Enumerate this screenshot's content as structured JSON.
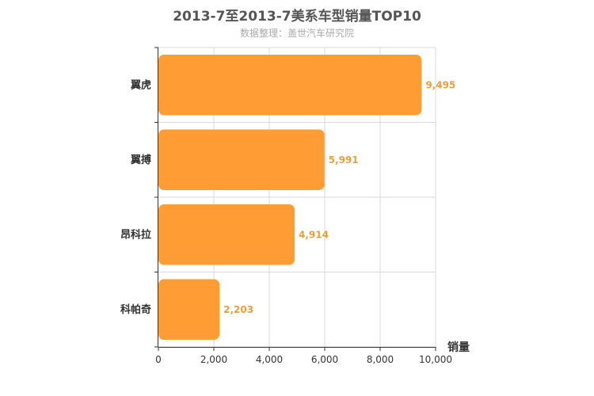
{
  "title": "2013-7至2013-7美系车型销量TOP10",
  "subtitle": "数据整理：盖世汽车研究院",
  "chart_data": {
    "type": "bar",
    "orientation": "horizontal",
    "categories": [
      "翼虎",
      "翼搏",
      "昂科拉",
      "科帕奇"
    ],
    "values": [
      9495,
      5991,
      4914,
      2203
    ],
    "value_labels": [
      "9,495",
      "5,991",
      "4,914",
      "2,203"
    ],
    "xlabel": "销量",
    "xlim": [
      0,
      10000
    ],
    "x_ticks": [
      0,
      2000,
      4000,
      6000,
      8000,
      10000
    ],
    "x_tick_labels": [
      "0",
      "2,000",
      "4,000",
      "6,000",
      "8,000",
      "10,000"
    ],
    "grid": true,
    "bar_color": "#ff9c33",
    "value_label_color": "#e8a13a"
  }
}
